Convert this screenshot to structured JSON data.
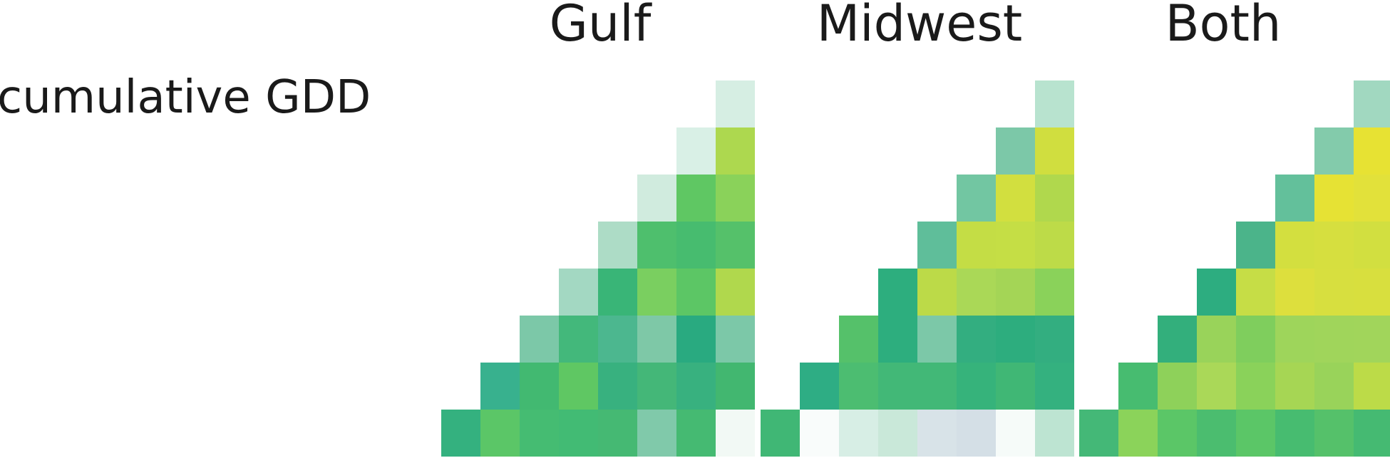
{
  "chart_data": {
    "type": "heatmap",
    "row_label": "cumulative GDD",
    "panels": [
      {
        "title": "Gulf",
        "rows": [
          [
            "#d6eee3"
          ],
          [
            "#d9f0e6",
            "#add84f"
          ],
          [
            "#d0ebde",
            "#5fc763",
            "#8ad25a"
          ],
          [
            "#addcc6",
            "#4ebf6d",
            "#47bc6f",
            "#55c16a"
          ],
          [
            "#a3d8c2",
            "#39b577",
            "#7acf60",
            "#5cc665",
            "#b0d84d"
          ],
          [
            "#7cc8a8",
            "#43b87b",
            "#4cb78f",
            "#7ec8a7",
            "#29aa80",
            "#7cc8a8"
          ],
          [
            "#38b18e",
            "#42b971",
            "#5fc763",
            "#38b17f",
            "#44b778",
            "#38b17f",
            "#42b770"
          ],
          [
            "#34b17f",
            "#5bc667",
            "#45bc72",
            "#42bb74",
            "#45b973",
            "#80c9aa",
            "#45ba72",
            "#f2f9f5"
          ]
        ]
      },
      {
        "title": "Midwest",
        "rows": [
          [
            "#b8e3cf"
          ],
          [
            "#7cc8a8",
            "#d0de3f"
          ],
          [
            "#72c6a2",
            "#d2df3f",
            "#b0d84d"
          ],
          [
            "#5fbe9a",
            "#c4dd45",
            "#c5de45",
            "#bddb48"
          ],
          [
            "#2dae7e",
            "#bcda48",
            "#aad857",
            "#a4d556",
            "#8ad25a"
          ],
          [
            "#55c16a",
            "#2dae7e",
            "#7cc8a8",
            "#33ae80",
            "#2dad7e",
            "#33ae80"
          ],
          [
            "#2ead84",
            "#4cbd71",
            "#42b877",
            "#42b877",
            "#36b37b",
            "#40b775",
            "#34b17f"
          ],
          [
            "#40b775",
            "#f9fcfb",
            "#d7eee5",
            "#c9e8d9",
            "#d8e3e8",
            "#d4dfe6",
            "#f6fbf9",
            "#bde4d2"
          ]
        ]
      },
      {
        "title": "Both",
        "rows": [
          [
            "#a1d8c0"
          ],
          [
            "#83cbab",
            "#e7e233"
          ],
          [
            "#63c09b",
            "#e6e234",
            "#e2e13a"
          ],
          [
            "#4bb48a",
            "#d3df3f",
            "#d6df3f",
            "#d2df40"
          ],
          [
            "#2dad80",
            "#c6dd46",
            "#dddf3d",
            "#d7df3f",
            "#d8df3e"
          ],
          [
            "#33af7c",
            "#99d35a",
            "#7fce5d",
            "#9ed55b",
            "#a0d55b",
            "#a1d55b"
          ],
          [
            "#47bc70",
            "#8ed15a",
            "#aad858",
            "#8ad25a",
            "#a6d654",
            "#99d35a",
            "#bcdb48"
          ],
          [
            "#44b877",
            "#8bd35a",
            "#5bc667",
            "#4bbd6f",
            "#5bc667",
            "#47bc70",
            "#55c16a",
            "#45ba72"
          ]
        ]
      }
    ]
  }
}
